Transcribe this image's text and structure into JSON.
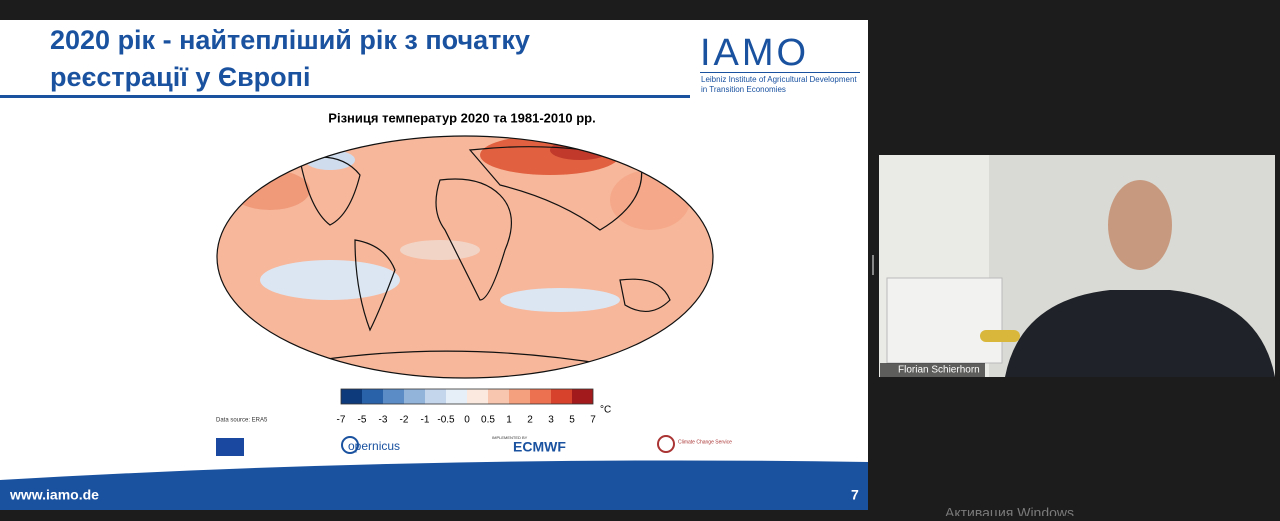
{
  "slide": {
    "title_lines": [
      "2020 рік - найтепліший рік з початку",
      "реєстрації у Європі"
    ],
    "logo": {
      "name": "IAMO",
      "subtitle_lines": [
        "Leibniz Institute of Agricultural Development",
        "in Transition Economies"
      ]
    },
    "map_title": "Різниця температур 2020 та 1981-2010 рр.",
    "colorbar": {
      "ticks": [
        -7,
        -5,
        -3,
        -2,
        -1,
        -0.5,
        0,
        0.5,
        1,
        2,
        3,
        5,
        7
      ],
      "unit": "°C"
    },
    "data_source": "Data source: ERA5",
    "partner_logos": {
      "copernicus": "opernicus",
      "implemented_by": "IMPLEMENTED BY",
      "ecmwf": "ECMWF",
      "climate_service": "Climate Change Service"
    },
    "footer": {
      "url": "www.iamo.de",
      "page": "7"
    }
  },
  "video": {
    "participant_name": "Florian Schierhorn"
  },
  "watermark": "Активация Windows"
}
